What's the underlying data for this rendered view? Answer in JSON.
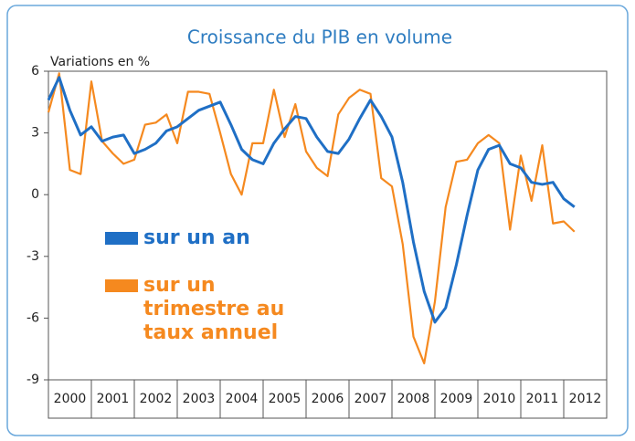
{
  "chart_data": {
    "type": "line",
    "title": "Croissance du PIB en volume",
    "y_label": "Variations en %",
    "x": [
      2000,
      2000.25,
      2000.5,
      2000.75,
      2001,
      2001.25,
      2001.5,
      2001.75,
      2002,
      2002.25,
      2002.5,
      2002.75,
      2003,
      2003.25,
      2003.5,
      2003.75,
      2004,
      2004.25,
      2004.5,
      2004.75,
      2005,
      2005.25,
      2005.5,
      2005.75,
      2006,
      2006.25,
      2006.5,
      2006.75,
      2007,
      2007.25,
      2007.5,
      2007.75,
      2008,
      2008.25,
      2008.5,
      2008.75,
      2009,
      2009.25,
      2009.5,
      2009.75,
      2010,
      2010.25,
      2010.5,
      2010.75,
      2011,
      2011.25,
      2011.5,
      2011.75,
      2012,
      2012.25
    ],
    "x_labels": [
      "2000",
      "2001",
      "2002",
      "2003",
      "2004",
      "2005",
      "2006",
      "2007",
      "2008",
      "2009",
      "2010",
      "2011",
      "2012"
    ],
    "xlim": [
      2000,
      2013
    ],
    "xticks": [
      2000,
      2001,
      2002,
      2003,
      2004,
      2005,
      2006,
      2007,
      2008,
      2009,
      2010,
      2011,
      2012,
      2013
    ],
    "ylim": [
      -9,
      6
    ],
    "yticks": [
      6,
      3,
      0,
      -3,
      -6,
      -9
    ],
    "series": [
      {
        "name": "sur un an",
        "color": "#1f6fc5",
        "values": [
          4.6,
          5.7,
          4.1,
          2.9,
          3.3,
          2.6,
          2.8,
          2.9,
          2.0,
          2.2,
          2.5,
          3.1,
          3.3,
          3.7,
          4.1,
          4.3,
          4.5,
          3.4,
          2.2,
          1.7,
          1.5,
          2.5,
          3.2,
          3.8,
          3.7,
          2.8,
          2.1,
          2.0,
          2.7,
          3.7,
          4.6,
          3.8,
          2.8,
          0.6,
          -2.3,
          -4.7,
          -6.2,
          -5.5,
          -3.4,
          -1.0,
          1.2,
          2.2,
          2.4,
          1.5,
          1.3,
          0.6,
          0.5,
          0.6,
          -0.2,
          -0.6
        ]
      },
      {
        "name": "sur un trimestre au taux annuel",
        "color": "#f5891f",
        "values": [
          4.0,
          5.9,
          1.2,
          1.0,
          5.5,
          2.6,
          2.0,
          1.5,
          1.7,
          3.4,
          3.5,
          3.9,
          2.5,
          5.0,
          5.0,
          4.9,
          3.0,
          1.0,
          0.0,
          2.5,
          2.5,
          5.1,
          2.8,
          4.4,
          2.1,
          1.3,
          0.9,
          3.9,
          4.7,
          5.1,
          4.9,
          0.8,
          0.4,
          -2.4,
          -6.9,
          -8.2,
          -5.2,
          -0.6,
          1.6,
          1.7,
          2.5,
          2.9,
          2.5,
          -1.7,
          1.9,
          -0.3,
          2.4,
          -1.4,
          -1.3,
          -1.8
        ]
      }
    ]
  }
}
